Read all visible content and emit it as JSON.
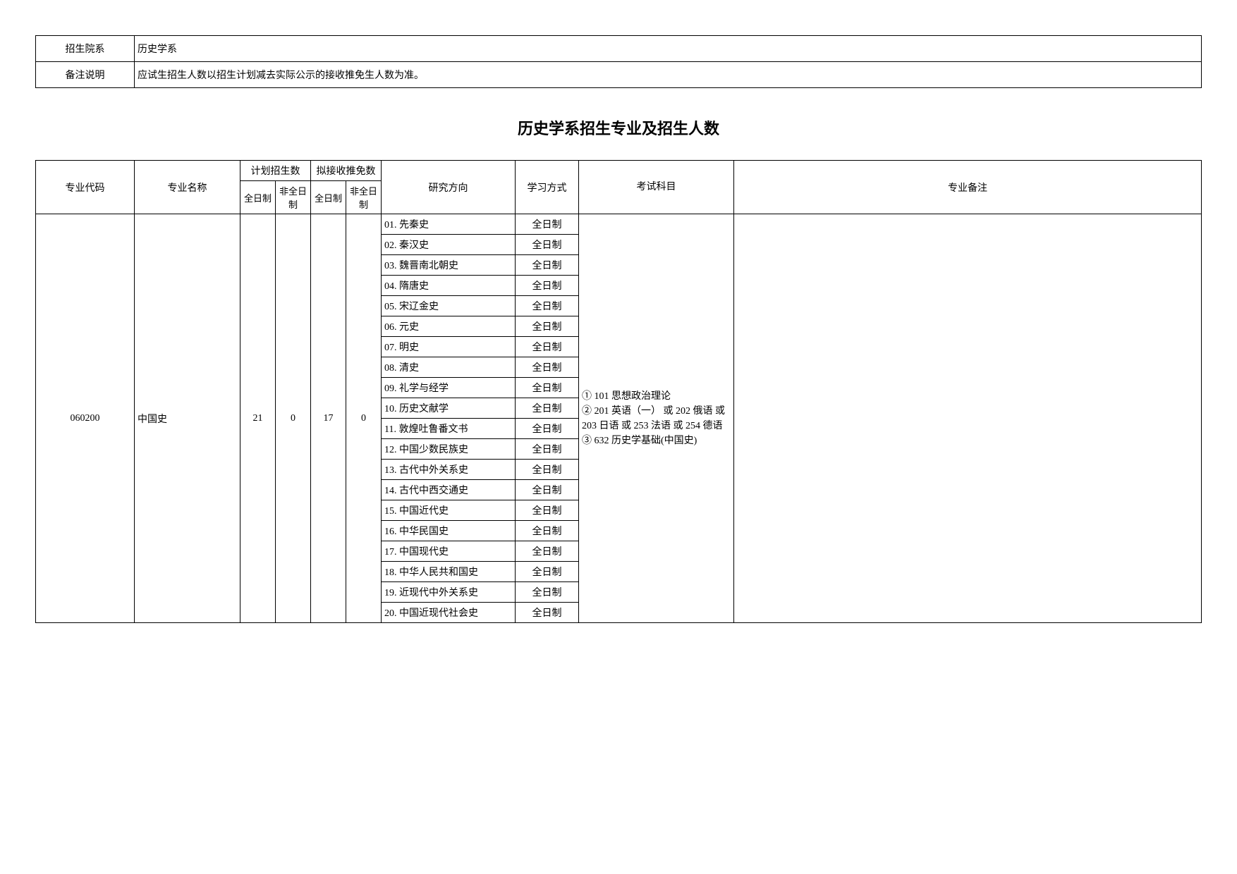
{
  "info": {
    "dept_label": "招生院系",
    "dept_value": "历史学系",
    "remark_label": "备注说明",
    "remark_value": "应试生招生人数以招生计划减去实际公示的接收推免生人数为准。"
  },
  "title": "历史学系招生专业及招生人数",
  "headers": {
    "code": "专业代码",
    "name": "专业名称",
    "plan": "计划招生数",
    "rec": "拟接收推免数",
    "full": "全日制",
    "part": "非全日制",
    "dir": "研究方向",
    "mode": "学习方式",
    "exam": "考试科目",
    "note": "专业备注"
  },
  "major": {
    "code": "060200",
    "name": "中国史",
    "plan_full": "21",
    "plan_part": "0",
    "rec_full": "17",
    "rec_part": "0",
    "exam": "① 101 思想政治理论\n② 201 英语（一） 或 202 俄语 或 203 日语 或 253 法语 或 254 德语\n③ 632 历史学基础(中国史)",
    "note": ""
  },
  "directions": [
    {
      "dir": "01. 先秦史",
      "mode": "全日制"
    },
    {
      "dir": "02. 秦汉史",
      "mode": "全日制"
    },
    {
      "dir": "03. 魏晋南北朝史",
      "mode": "全日制"
    },
    {
      "dir": "04. 隋唐史",
      "mode": "全日制"
    },
    {
      "dir": "05. 宋辽金史",
      "mode": "全日制"
    },
    {
      "dir": "06. 元史",
      "mode": "全日制"
    },
    {
      "dir": "07. 明史",
      "mode": "全日制"
    },
    {
      "dir": "08. 清史",
      "mode": "全日制"
    },
    {
      "dir": "09. 礼学与经学",
      "mode": "全日制"
    },
    {
      "dir": "10. 历史文献学",
      "mode": "全日制"
    },
    {
      "dir": "11. 敦煌吐鲁番文书",
      "mode": "全日制"
    },
    {
      "dir": "12. 中国少数民族史",
      "mode": "全日制"
    },
    {
      "dir": "13. 古代中外关系史",
      "mode": "全日制"
    },
    {
      "dir": "14. 古代中西交通史",
      "mode": "全日制"
    },
    {
      "dir": "15. 中国近代史",
      "mode": "全日制"
    },
    {
      "dir": "16. 中华民国史",
      "mode": "全日制"
    },
    {
      "dir": "17. 中国现代史",
      "mode": "全日制"
    },
    {
      "dir": "18. 中华人民共和国史",
      "mode": "全日制"
    },
    {
      "dir": "19. 近现代中外关系史",
      "mode": "全日制"
    },
    {
      "dir": "20. 中国近现代社会史",
      "mode": "全日制"
    }
  ]
}
